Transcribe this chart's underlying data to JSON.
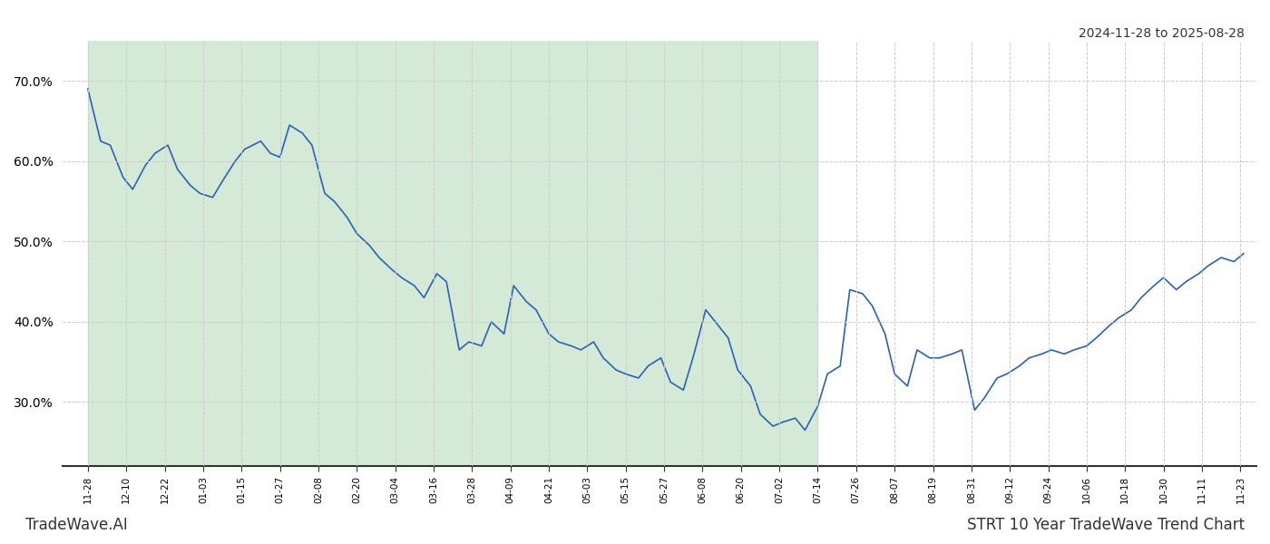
{
  "title_top_right": "2024-11-28 to 2025-08-28",
  "title_bottom_right": "STRT 10 Year TradeWave Trend Chart",
  "title_bottom_left": "TradeWave.AI",
  "shaded_start": "2024-11-28",
  "shaded_end": "2025-07-14",
  "line_color": "#2a62b8",
  "shade_color": "#d5ead6",
  "background_color": "#ffffff",
  "grid_color": "#cccccc",
  "ylim": [
    22,
    75
  ],
  "yticks": [
    30.0,
    40.0,
    50.0,
    60.0,
    70.0
  ],
  "dates": [
    "2024-11-28",
    "2024-12-02",
    "2024-12-05",
    "2024-12-09",
    "2024-12-12",
    "2024-12-16",
    "2024-12-19",
    "2024-12-23",
    "2024-12-26",
    "2024-12-30",
    "2025-01-02",
    "2025-01-06",
    "2025-01-09",
    "2025-01-13",
    "2025-01-16",
    "2025-01-21",
    "2025-01-24",
    "2025-01-27",
    "2025-01-30",
    "2025-02-03",
    "2025-02-06",
    "2025-02-10",
    "2025-02-13",
    "2025-02-17",
    "2025-02-20",
    "2025-02-24",
    "2025-02-27",
    "2025-03-03",
    "2025-03-06",
    "2025-03-10",
    "2025-03-13",
    "2025-03-17",
    "2025-03-20",
    "2025-03-24",
    "2025-03-27",
    "2025-03-31",
    "2025-04-03",
    "2025-04-07",
    "2025-04-10",
    "2025-04-14",
    "2025-04-17",
    "2025-04-21",
    "2025-04-24",
    "2025-04-28",
    "2025-05-01",
    "2025-05-05",
    "2025-05-08",
    "2025-05-12",
    "2025-05-15",
    "2025-05-19",
    "2025-05-22",
    "2025-05-26",
    "2025-05-29",
    "2025-06-02",
    "2025-06-05",
    "2025-06-09",
    "2025-06-12",
    "2025-06-16",
    "2025-06-19",
    "2025-06-23",
    "2025-06-26",
    "2025-06-30",
    "2025-07-03",
    "2025-07-07",
    "2025-07-10",
    "2025-07-14",
    "2025-07-17",
    "2025-07-21",
    "2025-07-24",
    "2025-07-28",
    "2025-07-31",
    "2025-08-04",
    "2025-08-07",
    "2025-08-11",
    "2025-08-14",
    "2025-08-18",
    "2025-08-21",
    "2025-08-25",
    "2025-08-28"
  ],
  "values": [
    69.0,
    62.5,
    62.0,
    58.0,
    56.5,
    59.5,
    61.0,
    62.0,
    59.0,
    57.0,
    56.0,
    55.5,
    57.5,
    60.0,
    61.5,
    62.5,
    61.0,
    60.5,
    64.5,
    63.5,
    62.0,
    56.0,
    55.0,
    53.0,
    51.0,
    49.5,
    48.0,
    46.5,
    45.5,
    44.5,
    43.0,
    46.0,
    45.0,
    36.5,
    37.5,
    37.0,
    40.0,
    38.5,
    44.5,
    42.5,
    41.5,
    38.5,
    37.5,
    37.0,
    36.5,
    37.5,
    35.5,
    34.0,
    33.5,
    33.0,
    34.5,
    35.5,
    32.5,
    31.5,
    35.5,
    41.5,
    40.0,
    38.0,
    34.0,
    32.0,
    28.5,
    27.0,
    27.5,
    28.0,
    26.5,
    29.5,
    33.5,
    34.5,
    44.0,
    43.5,
    42.0,
    38.5,
    33.5,
    32.0,
    36.5,
    35.5,
    35.5,
    36.0,
    36.5
  ],
  "extra_dates": [
    "2025-09-01",
    "2025-09-04",
    "2025-09-08",
    "2025-09-11",
    "2025-09-15",
    "2025-09-18",
    "2025-09-22",
    "2025-09-25",
    "2025-09-29",
    "2025-10-02",
    "2025-10-06",
    "2025-10-09",
    "2025-10-13",
    "2025-10-16",
    "2025-10-20",
    "2025-10-23",
    "2025-10-27",
    "2025-10-30",
    "2025-11-03",
    "2025-11-06",
    "2025-11-10",
    "2025-11-13",
    "2025-11-17",
    "2025-11-21",
    "2025-11-24"
  ],
  "extra_values": [
    29.0,
    30.5,
    33.0,
    33.5,
    34.5,
    35.5,
    36.0,
    36.5,
    36.0,
    36.5,
    37.0,
    38.0,
    39.5,
    40.5,
    41.5,
    43.0,
    44.5,
    45.5,
    44.0,
    45.0,
    46.0,
    47.0,
    48.0,
    47.5,
    48.5
  ]
}
